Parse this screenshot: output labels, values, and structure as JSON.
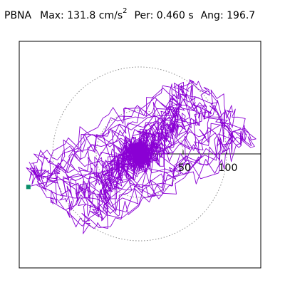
{
  "header": {
    "station": "PBNA",
    "max_label": "Max:",
    "max_value": "131.8",
    "max_unit": "cm/s",
    "max_unit_exp": "2",
    "per_label": "Per:",
    "per_value": "0.460",
    "per_unit": "s",
    "ang_label": "Ang:",
    "ang_value": "196.7"
  },
  "chart_data": {
    "type": "line",
    "title": "",
    "xlabel": "",
    "ylabel": "",
    "radial_rings": [
      50,
      100
    ],
    "tick_labels": [
      "50",
      "100"
    ],
    "xlim": [
      -135,
      135
    ],
    "ylim": [
      -135,
      135
    ],
    "grid": "dotted concentric circles",
    "series": [
      {
        "color": "#8a00d4",
        "end_marker": {
          "x": -128,
          "y": -38,
          "color": "#0a8f6a"
        }
      }
    ]
  }
}
